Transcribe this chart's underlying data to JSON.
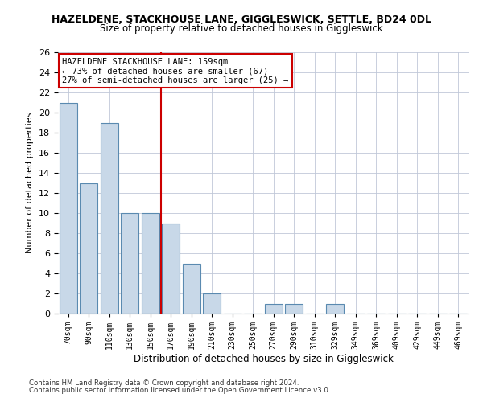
{
  "title": "HAZELDENE, STACKHOUSE LANE, GIGGLESWICK, SETTLE, BD24 0DL",
  "subtitle": "Size of property relative to detached houses in Giggleswick",
  "xlabel": "Distribution of detached houses by size in Giggleswick",
  "ylabel": "Number of detached properties",
  "categories": [
    "70sqm",
    "90sqm",
    "110sqm",
    "130sqm",
    "150sqm",
    "170sqm",
    "190sqm",
    "210sqm",
    "230sqm",
    "250sqm",
    "270sqm",
    "290sqm",
    "310sqm",
    "329sqm",
    "349sqm",
    "369sqm",
    "409sqm",
    "429sqm",
    "449sqm",
    "469sqm"
  ],
  "values": [
    21,
    13,
    19,
    10,
    10,
    9,
    5,
    2,
    0,
    0,
    1,
    1,
    0,
    1,
    0,
    0,
    0,
    0,
    0,
    0
  ],
  "bar_color": "#c8d8e8",
  "bar_edge_color": "#5a8ab0",
  "reference_line_x": 4.5,
  "reference_line_color": "#cc0000",
  "ylim": [
    0,
    26
  ],
  "yticks": [
    0,
    2,
    4,
    6,
    8,
    10,
    12,
    14,
    16,
    18,
    20,
    22,
    24,
    26
  ],
  "annotation_text": "HAZELDENE STACKHOUSE LANE: 159sqm\n← 73% of detached houses are smaller (67)\n27% of semi-detached houses are larger (25) →",
  "annotation_box_color": "#ffffff",
  "annotation_box_edge": "#cc0000",
  "footer_line1": "Contains HM Land Registry data © Crown copyright and database right 2024.",
  "footer_line2": "Contains public sector information licensed under the Open Government Licence v3.0.",
  "background_color": "#ffffff",
  "grid_color": "#c0c8d8"
}
